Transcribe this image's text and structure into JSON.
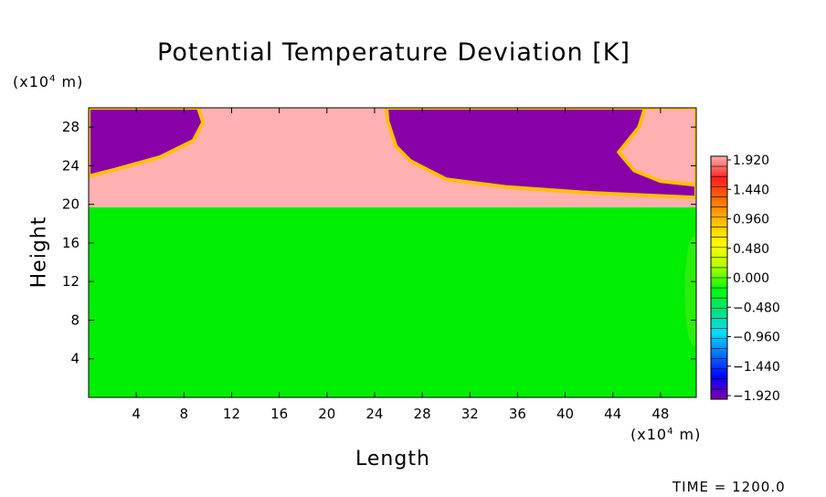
{
  "chart_data": {
    "type": "heatmap",
    "title": "Potential Temperature Deviation [K]",
    "xlabel": "Length",
    "ylabel": "Height",
    "x_unit": {
      "prefix": "(x10",
      "exponent": "4",
      "suffix": " m)"
    },
    "y_unit": {
      "prefix": "(x10",
      "exponent": "4",
      "suffix": " m)"
    },
    "xlim": [
      0,
      51
    ],
    "ylim": [
      0,
      30
    ],
    "x_ticks": [
      4,
      8,
      12,
      16,
      20,
      24,
      28,
      32,
      36,
      40,
      44,
      48
    ],
    "y_ticks": [
      4,
      8,
      12,
      16,
      20,
      24,
      28
    ],
    "colorbar": {
      "labels": [
        "1.920",
        "1.440",
        "0.960",
        "0.480",
        "0.000",
        "-0.480",
        "-0.960",
        "-1.440",
        "-1.920"
      ],
      "vmin": -1.92,
      "vmax": 1.92,
      "levels": 24,
      "colors_top_to_bottom": [
        "#ffb0b0",
        "#ff2020",
        "#ff7000",
        "#ffc000",
        "#ffff00",
        "#b0ff00",
        "#00ff00",
        "#00e080",
        "#00e0ff",
        "#0070ff",
        "#0000ff",
        "#8800a8"
      ]
    },
    "regions": {
      "lower_layer": {
        "value": 0.0,
        "y_range": [
          0,
          19.7
        ],
        "color": "#00ee00"
      },
      "warm_layer_value": 1.92,
      "warm_color": "#ffb0b0",
      "cold_layer_value": -1.92,
      "cold_color": "#8800a8",
      "cold_intrusions": [
        {
          "x_range": [
            0,
            10
          ],
          "y_bottom_at_left": 23,
          "y_top": 30
        },
        {
          "x_range": [
            24,
            51
          ],
          "y_bottom": 20.5,
          "y_top": 30
        }
      ],
      "warm_tongue": {
        "x_range": [
          44,
          51
        ],
        "y_range": [
          21,
          30
        ]
      }
    },
    "time": {
      "label": "TIME =",
      "value": "1200.0"
    }
  }
}
